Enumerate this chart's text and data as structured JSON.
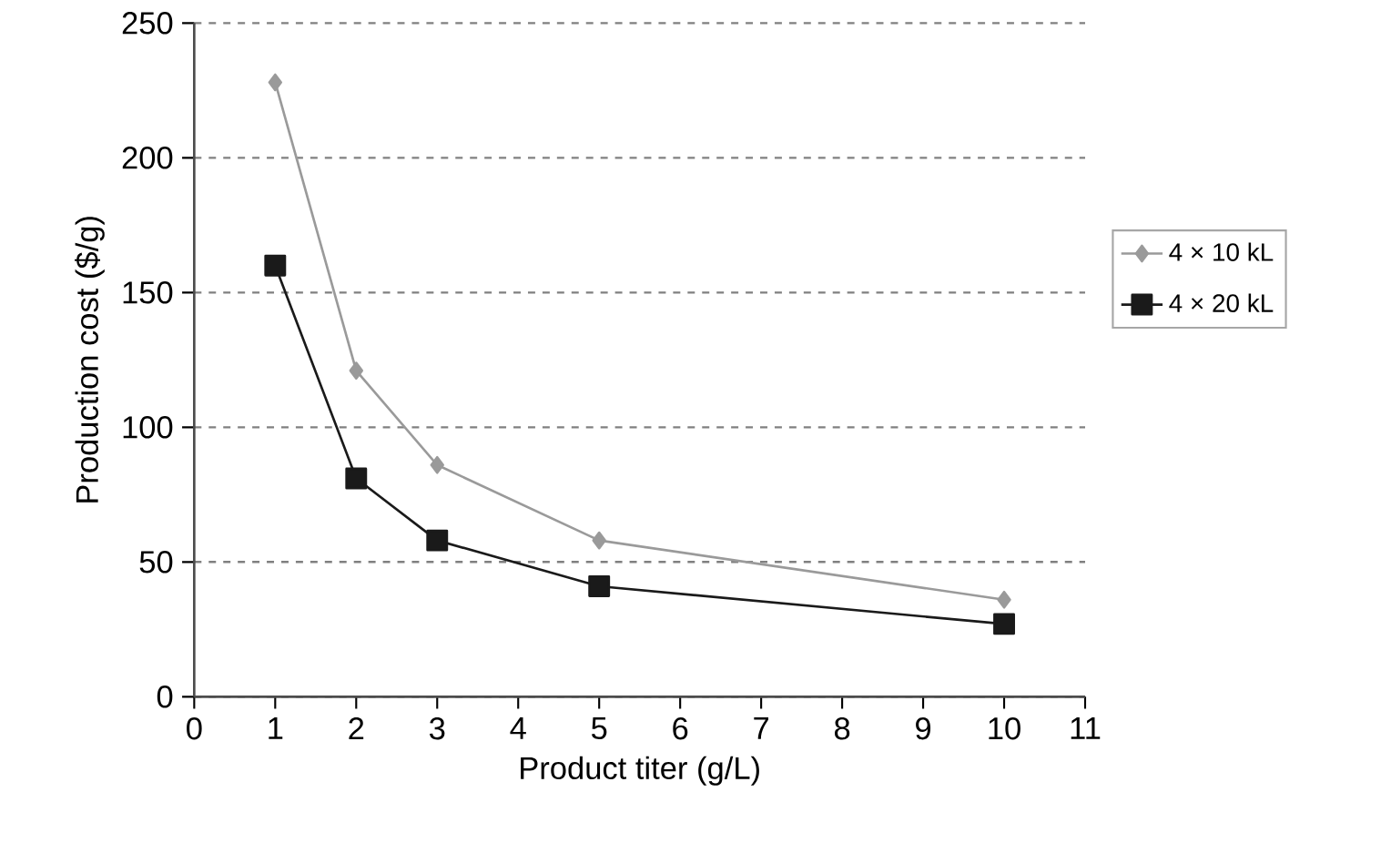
{
  "chart_data": {
    "type": "line",
    "xlabel": "Product titer (g/L)",
    "ylabel": "Production cost ($/g)",
    "x": [
      1,
      2,
      3,
      5,
      10
    ],
    "series": [
      {
        "name": "4 × 10 kL",
        "color": "#9a9a9a",
        "marker": "diamond",
        "values": [
          228,
          121,
          86,
          58,
          36
        ]
      },
      {
        "name": "4 × 20 kL",
        "color": "#1a1a1a",
        "marker": "square",
        "values": [
          160,
          81,
          58,
          41,
          27
        ]
      }
    ],
    "xlim": [
      0,
      11
    ],
    "xticks": [
      0,
      1,
      2,
      3,
      4,
      5,
      6,
      7,
      8,
      9,
      10,
      11
    ],
    "ylim": [
      0,
      250
    ],
    "yticks": [
      0,
      50,
      100,
      150,
      200,
      250
    ],
    "grid": "y",
    "legend": "right",
    "line_style": "solid"
  }
}
